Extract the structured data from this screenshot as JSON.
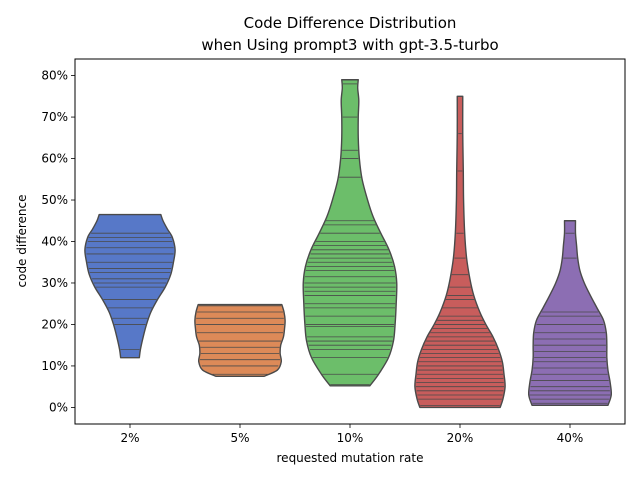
{
  "chart_data": {
    "type": "violin",
    "title_line1": "Code Difference Distribution",
    "title_line2": "when Using prompt3 with gpt-3.5-turbo",
    "xlabel": "requested mutation rate",
    "ylabel": "code difference",
    "categories": [
      "2%",
      "5%",
      "10%",
      "20%",
      "40%"
    ],
    "yticks": [
      0,
      10,
      20,
      30,
      40,
      50,
      60,
      70,
      80
    ],
    "ytick_labels": [
      "0%",
      "10%",
      "20%",
      "30%",
      "40%",
      "50%",
      "60%",
      "70%",
      "80%"
    ],
    "ylim": [
      -4,
      84
    ],
    "grid": false,
    "colors": [
      "#5778c8",
      "#dd8a58",
      "#6cbe6a",
      "#c85d5c",
      "#8c6eb3"
    ],
    "series": [
      {
        "min": 12,
        "max": 46.5,
        "shape": [
          [
            12,
            0.17
          ],
          [
            14,
            0.19
          ],
          [
            17,
            0.24
          ],
          [
            20,
            0.3
          ],
          [
            23,
            0.38
          ],
          [
            26,
            0.5
          ],
          [
            29,
            0.64
          ],
          [
            32,
            0.74
          ],
          [
            35,
            0.79
          ],
          [
            38,
            0.82
          ],
          [
            41,
            0.77
          ],
          [
            43,
            0.68
          ],
          [
            45,
            0.6
          ],
          [
            46.5,
            0.56
          ]
        ],
        "values": [
          12,
          14,
          20,
          21.5,
          24,
          26,
          29,
          30,
          31,
          32.5,
          33.5,
          35,
          37,
          38.5,
          40,
          41,
          42,
          46.5
        ]
      },
      {
        "min": 7.5,
        "max": 24.8,
        "shape": [
          [
            7.5,
            0.44
          ],
          [
            9,
            0.68
          ],
          [
            11,
            0.75
          ],
          [
            13,
            0.73
          ],
          [
            15,
            0.74
          ],
          [
            17,
            0.79
          ],
          [
            19,
            0.81
          ],
          [
            21,
            0.82
          ],
          [
            23,
            0.8
          ],
          [
            24.8,
            0.76
          ]
        ],
        "values": [
          8,
          10,
          11.5,
          13,
          14.5,
          16,
          18,
          20,
          21.5,
          23,
          24.5
        ]
      },
      {
        "min": 5.2,
        "max": 79,
        "shape": [
          [
            5.2,
            0.36
          ],
          [
            8,
            0.52
          ],
          [
            12,
            0.7
          ],
          [
            16,
            0.79
          ],
          [
            20,
            0.82
          ],
          [
            25,
            0.84
          ],
          [
            30,
            0.85
          ],
          [
            34,
            0.81
          ],
          [
            38,
            0.71
          ],
          [
            42,
            0.56
          ],
          [
            46,
            0.42
          ],
          [
            50,
            0.32
          ],
          [
            55,
            0.22
          ],
          [
            60,
            0.17
          ],
          [
            65,
            0.15
          ],
          [
            70,
            0.15
          ],
          [
            74,
            0.16
          ],
          [
            77,
            0.14
          ],
          [
            79,
            0.15
          ]
        ],
        "values": [
          5.5,
          8,
          12,
          14,
          15,
          16,
          17,
          19.5,
          20,
          22,
          24,
          25,
          27,
          28,
          29,
          30,
          31.5,
          33,
          34,
          35,
          36,
          37,
          38,
          39,
          40,
          42,
          44,
          45,
          55.5,
          60,
          62,
          70,
          78,
          79
        ]
      },
      {
        "min": 0,
        "max": 75,
        "shape": [
          [
            0,
            0.73
          ],
          [
            2,
            0.78
          ],
          [
            5,
            0.82
          ],
          [
            8,
            0.8
          ],
          [
            11,
            0.77
          ],
          [
            14,
            0.7
          ],
          [
            17,
            0.6
          ],
          [
            20,
            0.47
          ],
          [
            23,
            0.36
          ],
          [
            27,
            0.25
          ],
          [
            31,
            0.18
          ],
          [
            36,
            0.12
          ],
          [
            42,
            0.085
          ],
          [
            50,
            0.065
          ],
          [
            57,
            0.06
          ],
          [
            66,
            0.05
          ],
          [
            75,
            0.05
          ]
        ],
        "values": [
          0.5,
          2,
          3,
          4,
          5,
          6,
          7,
          8,
          9,
          10,
          11,
          12,
          13,
          14,
          15,
          16,
          17,
          18,
          19,
          20,
          21,
          22,
          24,
          26,
          27,
          29,
          32,
          36,
          42,
          57,
          66,
          75
        ]
      },
      {
        "min": 0.5,
        "max": 45,
        "shape": [
          [
            0.5,
            0.69
          ],
          [
            3,
            0.75
          ],
          [
            6,
            0.73
          ],
          [
            9,
            0.69
          ],
          [
            12,
            0.67
          ],
          [
            15,
            0.67
          ],
          [
            18,
            0.66
          ],
          [
            21,
            0.61
          ],
          [
            24,
            0.49
          ],
          [
            27,
            0.37
          ],
          [
            30,
            0.26
          ],
          [
            33,
            0.18
          ],
          [
            36,
            0.14
          ],
          [
            39,
            0.12
          ],
          [
            42,
            0.1
          ],
          [
            45,
            0.1
          ]
        ],
        "values": [
          1,
          2,
          3,
          4,
          5,
          6.5,
          8,
          9.5,
          11,
          12,
          13.5,
          15,
          16.5,
          18,
          20,
          22,
          23,
          36,
          42,
          45
        ]
      }
    ]
  }
}
